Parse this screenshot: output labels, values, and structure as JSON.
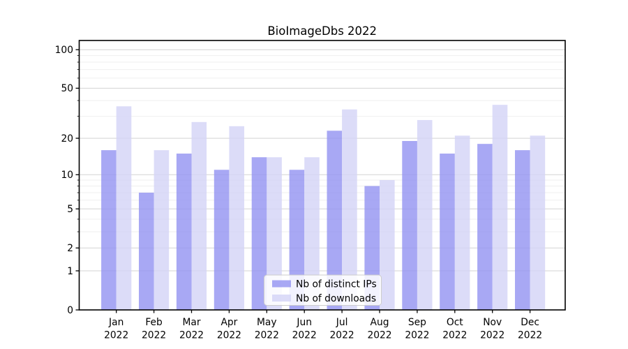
{
  "title": "BioImageDbs 2022",
  "chart_data": {
    "type": "bar",
    "title": "BioImageDbs 2022",
    "categories": [
      "Jan",
      "Feb",
      "Mar",
      "Apr",
      "May",
      "Jun",
      "Jul",
      "Aug",
      "Sep",
      "Oct",
      "Nov",
      "Dec"
    ],
    "category_year_line": "2022",
    "series": [
      {
        "name": "Nb of distinct IPs",
        "color": "#9595f1",
        "values": [
          16,
          7,
          15,
          11,
          14,
          11,
          23,
          8,
          19,
          15,
          18,
          16
        ]
      },
      {
        "name": "Nb of downloads",
        "color": "#d4d4f7",
        "values": [
          36,
          16,
          27,
          25,
          14,
          14,
          34,
          9,
          28,
          21,
          37,
          21
        ]
      }
    ],
    "xlabel": "",
    "ylabel": "",
    "y_scale": "log10(1+x)",
    "y_ticks": [
      0,
      1,
      2,
      5,
      10,
      20,
      50,
      100
    ],
    "y_minor_ticks": [
      3,
      4,
      6,
      7,
      8,
      9,
      30,
      40,
      60,
      70,
      80,
      90
    ],
    "ylim": [
      0,
      118
    ],
    "grid": true,
    "legend_position": "lower center"
  },
  "colors": {
    "background": "#ffffff",
    "bar_ips": "#9595f1",
    "bar_downloads": "#d4d4f7",
    "bar_opacity": 0.82,
    "grid_major": "#d3d3d3",
    "grid_minor": "#efefef",
    "spine": "#000000",
    "legend_border": "#cccccc",
    "legend_fill": "#ffffff"
  }
}
